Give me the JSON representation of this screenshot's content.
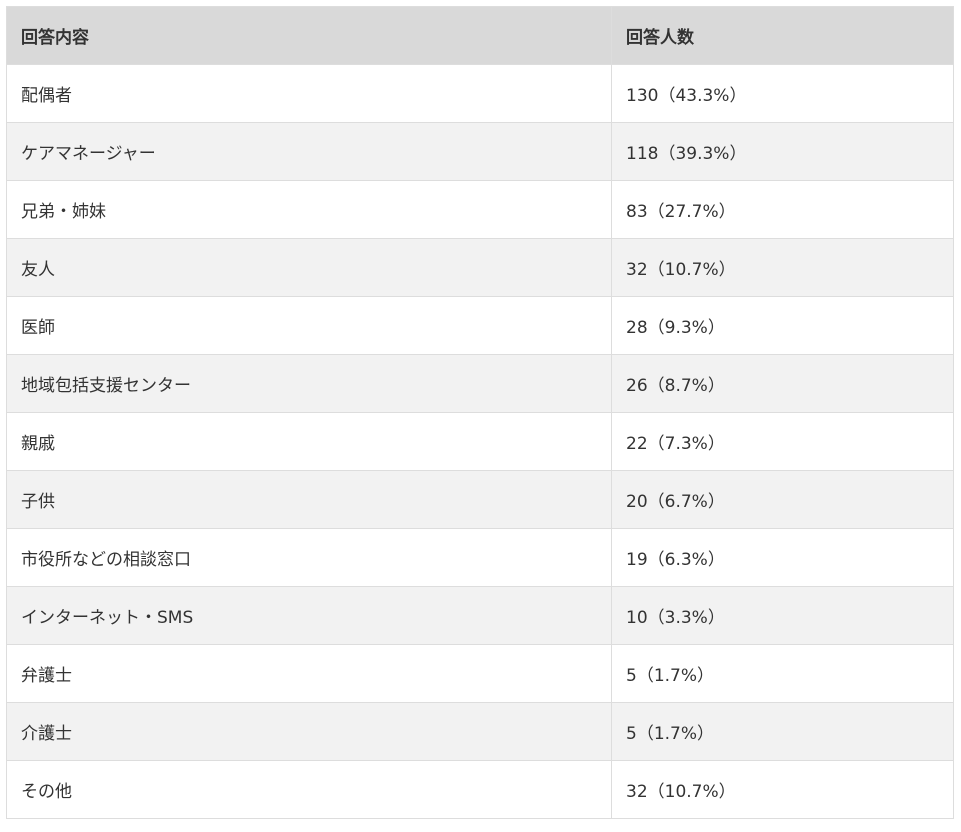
{
  "table": {
    "headers": [
      "回答内容",
      "回答人数"
    ],
    "rows": [
      [
        "配偶者",
        "130（43.3%）"
      ],
      [
        "ケアマネージャー",
        "118（39.3%）"
      ],
      [
        "兄弟・姉妹",
        "83（27.7%）"
      ],
      [
        "友人",
        "32（10.7%）"
      ],
      [
        "医師",
        "28（9.3%）"
      ],
      [
        "地域包括支援センター",
        "26（8.7%）"
      ],
      [
        "親戚",
        "22（7.3%）"
      ],
      [
        "子供",
        "20（6.7%）"
      ],
      [
        "市役所などの相談窓口",
        "19（6.3%）"
      ],
      [
        "インターネット・SMS",
        "10（3.3%）"
      ],
      [
        "弁護士",
        "5（1.7%）"
      ],
      [
        "介護士",
        "5（1.7%）"
      ],
      [
        "その他",
        "32（10.7%）"
      ]
    ]
  }
}
